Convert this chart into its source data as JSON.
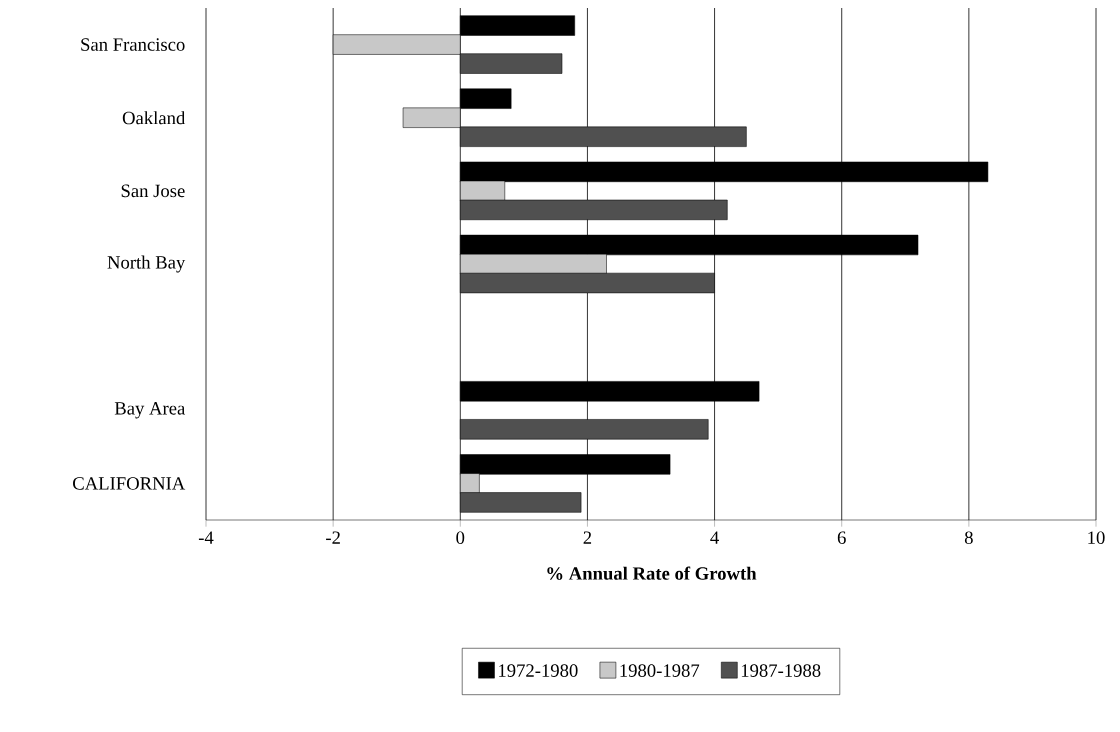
{
  "chart_data": {
    "type": "bar",
    "orientation": "horizontal",
    "xlabel": "% Annual Rate of Growth",
    "categories": [
      "San Francisco",
      "Oakland",
      "San Jose",
      "North Bay",
      null,
      "Bay Area",
      "CALIFORNIA"
    ],
    "series": [
      {
        "name": "1972-1980",
        "color": "#000000",
        "values": [
          1.8,
          0.8,
          8.3,
          7.2,
          null,
          4.7,
          3.3
        ]
      },
      {
        "name": "1980-1987",
        "color": "#c8c8c8",
        "values": [
          -2.0,
          -0.9,
          0.7,
          2.3,
          null,
          null,
          0.3
        ]
      },
      {
        "name": "1987-1988",
        "color": "#505050",
        "values": [
          1.6,
          4.5,
          4.2,
          4.0,
          null,
          3.9,
          1.9
        ]
      }
    ],
    "xlim": [
      -4,
      10
    ],
    "xticks": [
      -4,
      -2,
      0,
      2,
      4,
      6,
      8,
      10
    ],
    "grid": "x",
    "legend": "bottom"
  }
}
